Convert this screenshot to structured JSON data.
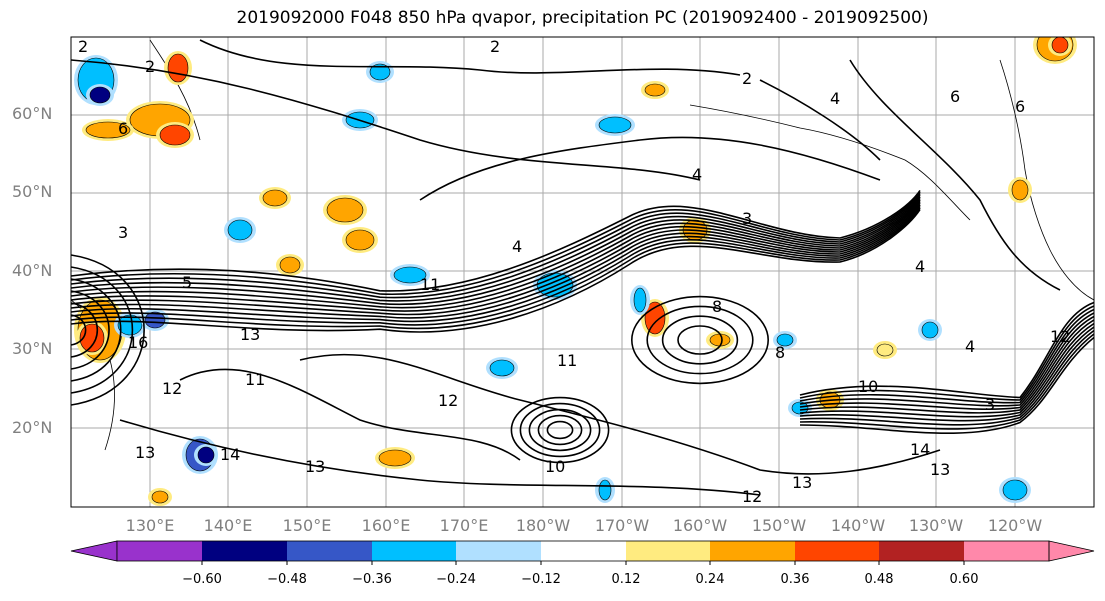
{
  "title": "2019092000 F048 850 hPa qvapor, precipitation PC (2019092400 - 2019092500)",
  "lat_labels": [
    "60°N",
    "50°N",
    "40°N",
    "30°N",
    "20°N"
  ],
  "lon_labels": [
    "130°E",
    "140°E",
    "150°E",
    "160°E",
    "170°E",
    "180°W",
    "170°W",
    "160°W",
    "150°W",
    "140°W",
    "130°W",
    "120°W"
  ],
  "colorbar": {
    "colors": [
      "#9932cc",
      "#000080",
      "#3657c7",
      "#00bfff",
      "#b0e0ff",
      "#ffffff",
      "#ffeb80",
      "#ffa500",
      "#ff4500",
      "#b22222",
      "#ff88aa"
    ],
    "tick_labels": [
      "−0.60",
      "−0.48",
      "−0.36",
      "−0.24",
      "−0.12",
      "0.12",
      "0.24",
      "0.36",
      "0.48",
      "0.60"
    ]
  },
  "contour_labels": [
    "2",
    "2",
    "2",
    "2",
    "3",
    "3",
    "3",
    "4",
    "4",
    "4",
    "4",
    "4",
    "5",
    "6",
    "6",
    "6",
    "8",
    "8",
    "10",
    "10",
    "11",
    "11",
    "11",
    "12",
    "12",
    "12",
    "12",
    "13",
    "13",
    "13",
    "13",
    "13",
    "14",
    "14",
    "16"
  ]
}
